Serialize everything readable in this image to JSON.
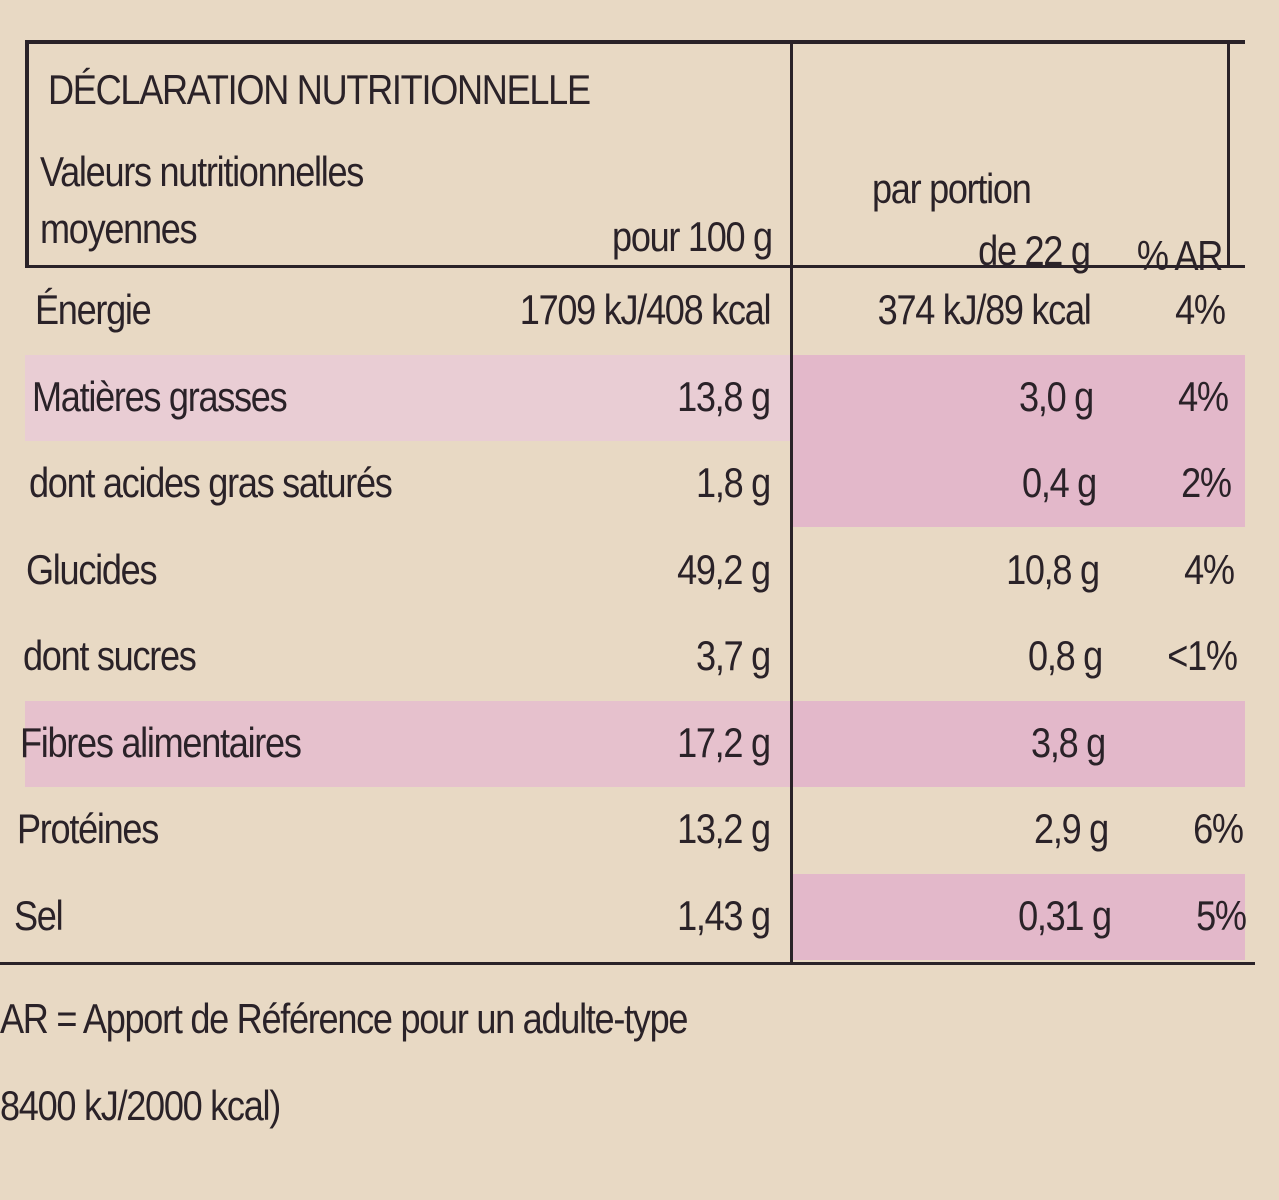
{
  "header": {
    "title": "DÉCLARATION NUTRITIONNELLE",
    "label_line1": "Valeurs nutritionnelles",
    "label_line2": "moyennes",
    "per100": "pour 100 g",
    "portion_line1": "par portion",
    "portion_line2": "de 22 g",
    "ar": "% AR"
  },
  "table": {
    "rows": [
      [
        "Énergie",
        "1709 kJ/408 kcal",
        "374 kJ/89 kcal",
        "4%"
      ],
      [
        "Matières grasses",
        "13,8 g",
        "3,0 g",
        "4%"
      ],
      [
        "dont acides gras saturés",
        "1,8 g",
        "0,4 g",
        "2%"
      ],
      [
        "Glucides",
        "49,2 g",
        "10,8 g",
        "4%"
      ],
      [
        "dont sucres",
        "3,7 g",
        "0,8 g",
        "<1%"
      ],
      [
        "Fibres alimentaires",
        "17,2 g",
        "3,8 g",
        null
      ],
      [
        "Protéines",
        "13,2 g",
        "2,9 g",
        "6%"
      ],
      [
        "Sel",
        "1,43 g",
        "0,31 g",
        "5%"
      ]
    ]
  },
  "footer": {
    "line1": "AR = Apport de Référence pour un adulte-type",
    "line2": "8400 kJ/2000 kcal)"
  }
}
